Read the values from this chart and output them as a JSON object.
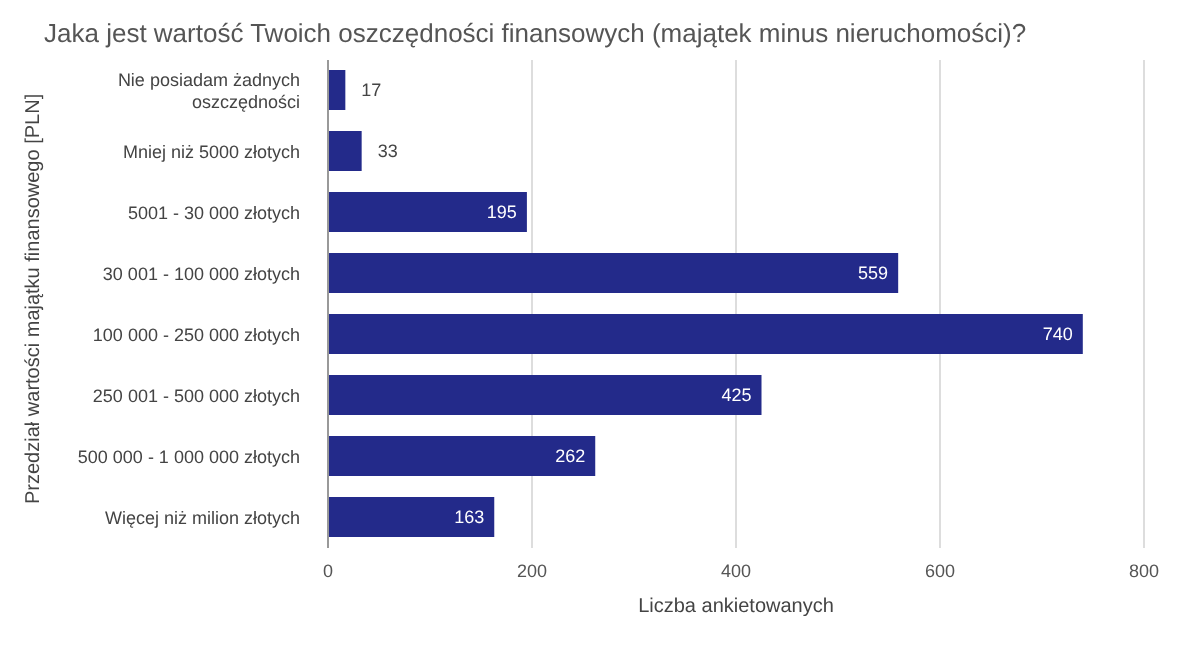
{
  "chart_data": {
    "type": "bar",
    "orientation": "horizontal",
    "title": "Jaka jest wartość Twoich oszczędności finansowych (majątek minus nieruchomości)?",
    "xlabel": "Liczba ankietowanych",
    "ylabel": "Przedział wartości majątku finansowego [PLN]",
    "categories": [
      "Nie posiadam żadnych oszczędności",
      "Mniej niż 5000 złotych",
      "5001 - 30 000 złotych",
      "30 001 - 100 000 złotych",
      "100 000 - 250 000 złotych",
      "250 001 - 500 000 złotych",
      "500 000 - 1 000 000 złotych",
      "Więcej niż milion złotych"
    ],
    "values": [
      17,
      33,
      195,
      559,
      740,
      425,
      262,
      163
    ],
    "color": "#232a8a",
    "xlim": [
      0,
      800
    ],
    "xticks": [
      0,
      200,
      400,
      600,
      800
    ],
    "grid": "x",
    "data_labels": true
  }
}
